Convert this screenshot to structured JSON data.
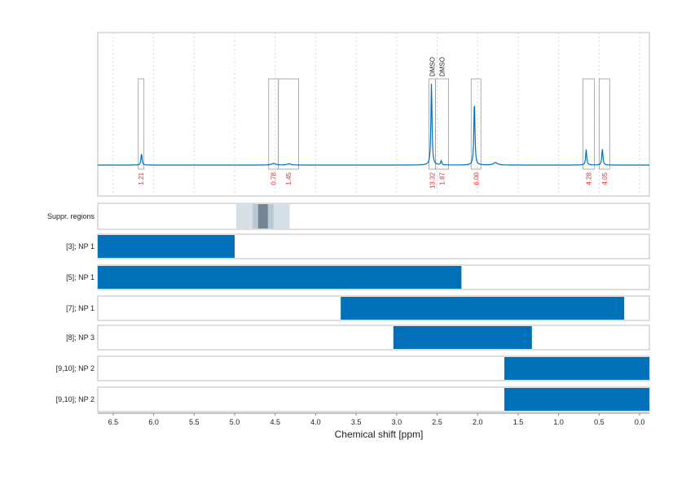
{
  "chart_data": {
    "type": "nmr-spectrum-with-range-bars",
    "xlabel": "Chemical shift [ppm]",
    "xlim": [
      6.69,
      -0.12
    ],
    "x_reversed": true,
    "x_ticks": [
      "6.5",
      "6.0",
      "5.5",
      "5.0",
      "4.5",
      "4.0",
      "3.5",
      "3.0",
      "2.5",
      "2.0",
      "1.5",
      "1.0",
      "0.5",
      "0.0"
    ],
    "grid": true,
    "spectrum": {
      "color": "#0070b8",
      "peaks": [
        {
          "ppm": 6.15,
          "intensity": 0.14
        },
        {
          "ppm": 4.52,
          "intensity": 0.02
        },
        {
          "ppm": 4.33,
          "intensity": 0.015
        },
        {
          "ppm": 2.57,
          "intensity": 1.0
        },
        {
          "ppm": 2.45,
          "intensity": 0.05
        },
        {
          "ppm": 2.04,
          "intensity": 0.78
        },
        {
          "ppm": 1.78,
          "intensity": 0.03
        },
        {
          "ppm": 0.66,
          "intensity": 0.19
        },
        {
          "ppm": 0.46,
          "intensity": 0.2
        }
      ],
      "integration_regions": [
        {
          "from": 6.19,
          "to": 6.12,
          "label": "1.21"
        },
        {
          "from": 4.58,
          "to": 4.46,
          "label": "0.78"
        },
        {
          "from": 4.46,
          "to": 4.21,
          "label": "1.45"
        },
        {
          "from": 2.6,
          "to": 2.52,
          "label": "13.32",
          "annotation": "DMSO"
        },
        {
          "from": 2.52,
          "to": 2.36,
          "label": "1.87",
          "annotation": "DMSO"
        },
        {
          "from": 2.08,
          "to": 1.96,
          "label": "6.00"
        },
        {
          "from": 0.7,
          "to": 0.56,
          "label": "4.28"
        },
        {
          "from": 0.5,
          "to": 0.37,
          "label": "4.05"
        }
      ],
      "label_color": "#e8262a"
    },
    "suppressed_regions": {
      "label": "Suppr. regions",
      "bands": [
        {
          "from": 4.98,
          "to": 4.32,
          "color": "#d6dee6"
        },
        {
          "from": 4.78,
          "to": 4.52,
          "color": "#b9c8d1"
        },
        {
          "from": 4.71,
          "to": 4.59,
          "color": "#738592"
        }
      ]
    },
    "ranges": [
      {
        "label": "[3]; NP 1",
        "from": 6.69,
        "to": 5.0
      },
      {
        "label": "[5]; NP 1",
        "from": 6.69,
        "to": 2.2
      },
      {
        "label": "[7]; NP 1",
        "from": 3.69,
        "to": 0.19
      },
      {
        "label": "[8]; NP 3",
        "from": 3.04,
        "to": 1.33
      },
      {
        "label": "[9,10]; NP 2",
        "from": 1.67,
        "to": -0.12
      },
      {
        "label": "[9,10]; NP 2",
        "from": 1.67,
        "to": -0.12
      }
    ],
    "bar_color": "#0070b8"
  }
}
